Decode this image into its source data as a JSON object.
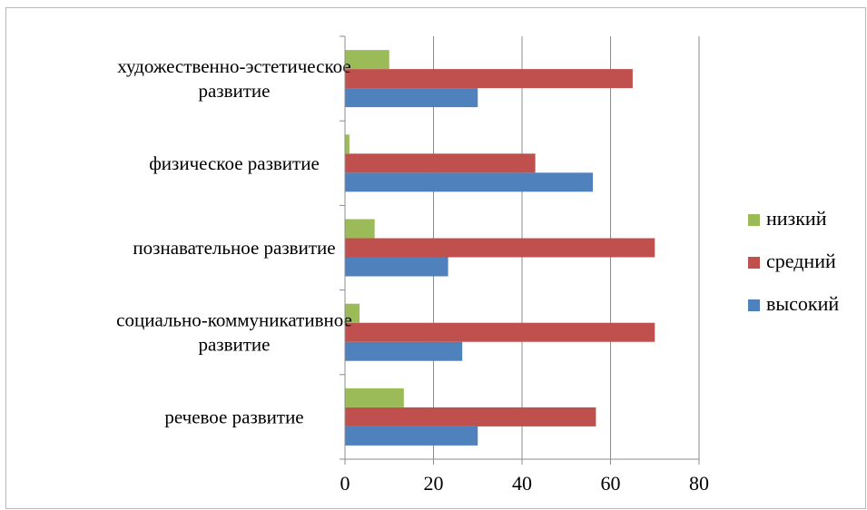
{
  "chart_data": {
    "type": "bar",
    "orientation": "horizontal",
    "title": "",
    "xlabel": "",
    "ylabel": "",
    "categories": [
      [
        "речевое развитие"
      ],
      [
        "социально-коммуникативное",
        "развитие"
      ],
      [
        "познавательное развитие"
      ],
      [
        "физическое развитие"
      ],
      [
        "художественно-эстетическое",
        "развитие"
      ]
    ],
    "series": [
      {
        "name": "высокий",
        "color": "#4f81bd",
        "values": [
          30,
          26.5,
          23.3,
          56,
          30
        ]
      },
      {
        "name": "средний",
        "color": "#c0504d",
        "values": [
          56.7,
          70,
          70,
          43,
          65
        ]
      },
      {
        "name": "низкий",
        "color": "#9bbb59",
        "values": [
          13.3,
          3.3,
          6.7,
          1,
          10
        ]
      }
    ],
    "xlim": [
      0,
      80
    ],
    "xticks": [
      0,
      20,
      40,
      60,
      80
    ],
    "grid": "vertical",
    "legend_position": "right"
  }
}
